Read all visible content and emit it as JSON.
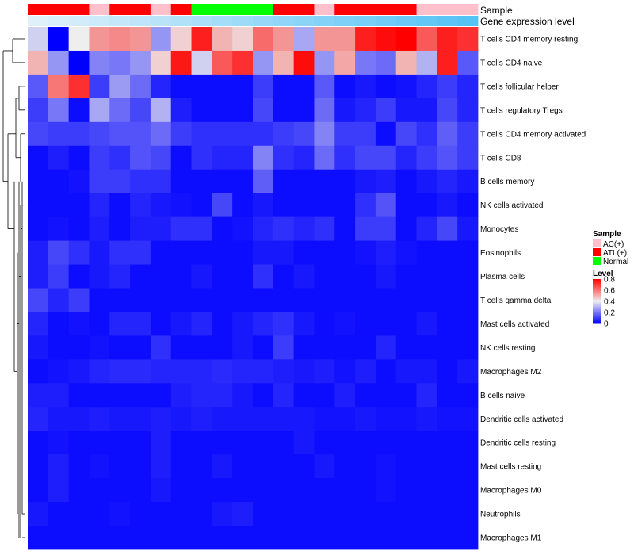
{
  "chart_data": {
    "type": "heatmap",
    "title": "",
    "annotation_labels": {
      "sample": "Sample",
      "gene": "Gene expression level"
    },
    "row_labels": [
      "T cells CD4 memory resting",
      "T cells CD4 naive",
      "T cells follicular helper",
      "T cells regulatory  Tregs",
      "T cells CD4 memory activated",
      "T cells CD8",
      "B cells memory",
      "NK cells activated",
      "Monocytes",
      "Eosinophils",
      "Plasma cells",
      "T cells gamma delta",
      "Mast cells activated",
      "NK cells resting",
      "Macrophages M2",
      "B cells naive",
      "Dendritic cells activated",
      "Dendritic cells resting",
      "Mast cells resting",
      "Macrophages M0",
      "Neutrophils",
      "Macrophages M1"
    ],
    "sample_groups": [
      "ATL(+)",
      "ATL(+)",
      "ATL(+)",
      "AC(+)",
      "ATL(+)",
      "ATL(+)",
      "AC(+)",
      "ATL(+)",
      "Normal",
      "Normal",
      "Normal",
      "Normal",
      "ATL(+)",
      "ATL(+)",
      "AC(+)",
      "ATL(+)",
      "ATL(+)",
      "ATL(+)",
      "ATL(+)",
      "AC(+)",
      "AC(+)",
      "AC(+)"
    ],
    "gene_levels": [
      0.1,
      0.12,
      0.14,
      0.16,
      0.18,
      0.2,
      0.22,
      0.24,
      0.26,
      0.28,
      0.3,
      0.32,
      0.34,
      0.36,
      0.38,
      0.4,
      0.42,
      0.44,
      0.46,
      0.48,
      0.5,
      0.52
    ],
    "values": [
      [
        0.35,
        0.0,
        0.4,
        0.55,
        0.57,
        0.55,
        0.25,
        0.45,
        0.75,
        0.5,
        0.45,
        0.62,
        0.55,
        0.28,
        0.55,
        0.55,
        0.75,
        0.78,
        0.8,
        0.65,
        0.75,
        0.72
      ],
      [
        0.5,
        0.25,
        0.0,
        0.22,
        0.2,
        0.25,
        0.45,
        0.76,
        0.35,
        0.65,
        0.72,
        0.25,
        0.5,
        0.78,
        0.25,
        0.52,
        0.2,
        0.18,
        0.5,
        0.3,
        0.75,
        0.15
      ],
      [
        0.15,
        0.6,
        0.72,
        0.1,
        0.26,
        0.18,
        0.06,
        0.02,
        0.02,
        0.02,
        0.02,
        0.1,
        0.02,
        0.02,
        0.15,
        0.02,
        0.04,
        0.02,
        0.03,
        0.06,
        0.1,
        0.06
      ],
      [
        0.1,
        0.2,
        0.02,
        0.28,
        0.18,
        0.12,
        0.3,
        0.05,
        0.02,
        0.02,
        0.02,
        0.12,
        0.02,
        0.02,
        0.18,
        0.04,
        0.06,
        0.1,
        0.04,
        0.04,
        0.12,
        0.06
      ],
      [
        0.12,
        0.1,
        0.1,
        0.12,
        0.14,
        0.14,
        0.18,
        0.1,
        0.08,
        0.08,
        0.08,
        0.08,
        0.1,
        0.12,
        0.22,
        0.1,
        0.1,
        0.02,
        0.12,
        0.08,
        0.16,
        0.1
      ],
      [
        0.02,
        0.05,
        0.02,
        0.1,
        0.08,
        0.14,
        0.12,
        0.02,
        0.08,
        0.06,
        0.06,
        0.22,
        0.08,
        0.06,
        0.18,
        0.08,
        0.12,
        0.12,
        0.06,
        0.1,
        0.14,
        0.1
      ],
      [
        0.02,
        0.02,
        0.03,
        0.1,
        0.1,
        0.08,
        0.08,
        0.02,
        0.02,
        0.02,
        0.02,
        0.16,
        0.02,
        0.02,
        0.02,
        0.02,
        0.04,
        0.05,
        0.02,
        0.04,
        0.06,
        0.04
      ],
      [
        0.02,
        0.02,
        0.02,
        0.06,
        0.02,
        0.06,
        0.04,
        0.03,
        0.02,
        0.12,
        0.02,
        0.04,
        0.02,
        0.02,
        0.02,
        0.02,
        0.08,
        0.14,
        0.02,
        0.02,
        0.04,
        0.02
      ],
      [
        0.02,
        0.03,
        0.02,
        0.05,
        0.02,
        0.05,
        0.05,
        0.08,
        0.08,
        0.02,
        0.03,
        0.06,
        0.08,
        0.06,
        0.08,
        0.02,
        0.1,
        0.1,
        0.02,
        0.06,
        0.12,
        0.04
      ],
      [
        0.05,
        0.12,
        0.08,
        0.04,
        0.08,
        0.08,
        0.02,
        0.02,
        0.02,
        0.02,
        0.02,
        0.04,
        0.04,
        0.02,
        0.02,
        0.02,
        0.03,
        0.05,
        0.03,
        0.02,
        0.02,
        0.02
      ],
      [
        0.05,
        0.1,
        0.02,
        0.04,
        0.06,
        0.02,
        0.02,
        0.02,
        0.04,
        0.02,
        0.02,
        0.08,
        0.02,
        0.04,
        0.02,
        0.02,
        0.02,
        0.04,
        0.02,
        0.02,
        0.02,
        0.02
      ],
      [
        0.12,
        0.06,
        0.1,
        0.02,
        0.02,
        0.02,
        0.02,
        0.02,
        0.02,
        0.02,
        0.02,
        0.02,
        0.02,
        0.02,
        0.02,
        0.02,
        0.02,
        0.02,
        0.02,
        0.02,
        0.02,
        0.02
      ],
      [
        0.06,
        0.02,
        0.03,
        0.02,
        0.06,
        0.06,
        0.02,
        0.04,
        0.06,
        0.02,
        0.04,
        0.06,
        0.08,
        0.04,
        0.02,
        0.03,
        0.02,
        0.02,
        0.02,
        0.04,
        0.02,
        0.02
      ],
      [
        0.04,
        0.02,
        0.02,
        0.03,
        0.02,
        0.02,
        0.08,
        0.02,
        0.02,
        0.02,
        0.04,
        0.02,
        0.1,
        0.02,
        0.02,
        0.02,
        0.02,
        0.06,
        0.02,
        0.02,
        0.02,
        0.02
      ],
      [
        0.02,
        0.03,
        0.04,
        0.06,
        0.07,
        0.07,
        0.06,
        0.06,
        0.06,
        0.07,
        0.06,
        0.06,
        0.05,
        0.04,
        0.05,
        0.03,
        0.05,
        0.02,
        0.04,
        0.04,
        0.02,
        0.04
      ],
      [
        0.05,
        0.05,
        0.02,
        0.02,
        0.02,
        0.02,
        0.02,
        0.05,
        0.06,
        0.06,
        0.04,
        0.02,
        0.06,
        0.02,
        0.02,
        0.05,
        0.02,
        0.02,
        0.02,
        0.06,
        0.02,
        0.02
      ],
      [
        0.06,
        0.04,
        0.04,
        0.05,
        0.04,
        0.04,
        0.05,
        0.04,
        0.05,
        0.04,
        0.04,
        0.04,
        0.04,
        0.04,
        0.03,
        0.03,
        0.04,
        0.03,
        0.03,
        0.04,
        0.03,
        0.03
      ],
      [
        0.02,
        0.03,
        0.02,
        0.02,
        0.02,
        0.02,
        0.05,
        0.02,
        0.02,
        0.02,
        0.02,
        0.02,
        0.02,
        0.04,
        0.02,
        0.02,
        0.02,
        0.02,
        0.02,
        0.02,
        0.02,
        0.02
      ],
      [
        0.02,
        0.05,
        0.02,
        0.03,
        0.02,
        0.02,
        0.05,
        0.02,
        0.02,
        0.04,
        0.02,
        0.02,
        0.02,
        0.02,
        0.04,
        0.02,
        0.02,
        0.03,
        0.02,
        0.02,
        0.02,
        0.02
      ],
      [
        0.02,
        0.05,
        0.02,
        0.02,
        0.02,
        0.02,
        0.04,
        0.02,
        0.02,
        0.02,
        0.02,
        0.02,
        0.02,
        0.02,
        0.02,
        0.02,
        0.02,
        0.03,
        0.02,
        0.02,
        0.02,
        0.02
      ],
      [
        0.04,
        0.02,
        0.02,
        0.02,
        0.03,
        0.02,
        0.02,
        0.02,
        0.02,
        0.04,
        0.05,
        0.02,
        0.02,
        0.02,
        0.02,
        0.02,
        0.02,
        0.02,
        0.02,
        0.02,
        0.02,
        0.02
      ],
      [
        0.02,
        0.02,
        0.02,
        0.02,
        0.02,
        0.02,
        0.02,
        0.02,
        0.02,
        0.02,
        0.02,
        0.02,
        0.02,
        0.02,
        0.02,
        0.02,
        0.02,
        0.02,
        0.02,
        0.02,
        0.02,
        0.02
      ]
    ],
    "legend": {
      "sample_title": "Sample",
      "sample_items": [
        {
          "label": "AC(+)",
          "color": "#ffc0cb"
        },
        {
          "label": "ATL(+)",
          "color": "#ff0000"
        },
        {
          "label": "Normal",
          "color": "#00ff00"
        }
      ],
      "level_title": "Level",
      "level_ticks": [
        "0.8",
        "0.6",
        "0.4",
        "0.2",
        "0"
      ],
      "level_tick_values": [
        0.8,
        0.6,
        0.4,
        0.2,
        0
      ],
      "level_range": [
        0,
        0.8
      ]
    },
    "colors": {
      "low": "#0000ff",
      "mid": "#eeeeee",
      "high": "#ff0000",
      "gene_low": "#dff0fb",
      "gene_high": "#56c3f5"
    }
  }
}
